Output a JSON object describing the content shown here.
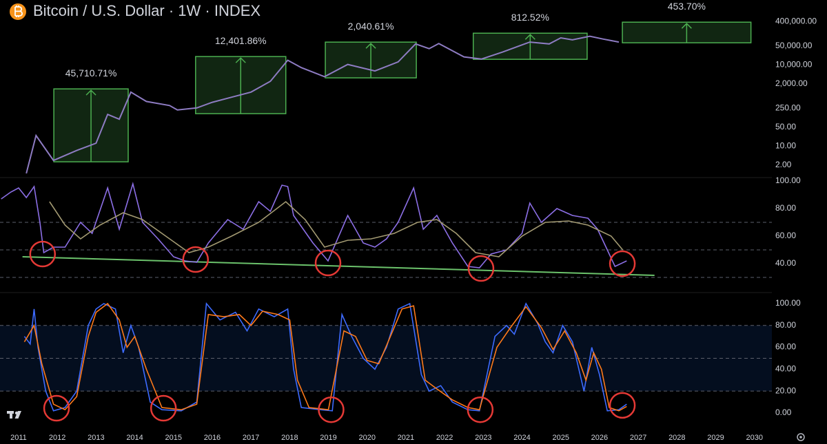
{
  "chart_data": [
    {
      "type": "line",
      "title": "Bitcoin / U.S. Dollar · 1W · INDEX",
      "log": true,
      "color": "#8e7cc3",
      "xlim": [
        2010.52,
        2030.45
      ],
      "ylim": [
        0.7,
        2500000
      ],
      "yticks": [
        {
          "value": 2,
          "label": "2.00"
        },
        {
          "value": 10,
          "label": "10.00"
        },
        {
          "value": 50,
          "label": "50.00"
        },
        {
          "value": 250,
          "label": "250.00"
        },
        {
          "value": 2000,
          "label": "2,000.00"
        },
        {
          "value": 10000,
          "label": "10,000.00"
        },
        {
          "value": 50000,
          "label": "50,000.00"
        },
        {
          "value": 400000,
          "label": "400,000.00"
        }
      ],
      "x": [
        2011.2,
        2011.45,
        2011.9,
        2012.5,
        2013.0,
        2013.3,
        2013.6,
        2013.9,
        2014.3,
        2014.9,
        2015.1,
        2015.6,
        2016.0,
        2016.5,
        2017.0,
        2017.5,
        2017.95,
        2018.3,
        2018.9,
        2019.5,
        2020.2,
        2020.8,
        2021.25,
        2021.6,
        2021.85,
        2022.5,
        2022.95,
        2023.5,
        2024.2,
        2024.7,
        2025.0,
        2025.3,
        2025.75,
        2026.1,
        2026.5
      ],
      "values": [
        1,
        25,
        3,
        7,
        13,
        150,
        100,
        1000,
        450,
        320,
        220,
        260,
        420,
        650,
        1000,
        2500,
        15000,
        8000,
        3700,
        10500,
        6000,
        13000,
        60000,
        40000,
        62000,
        20000,
        16500,
        30000,
        70000,
        60000,
        100000,
        85000,
        115000,
        90000,
        70000
      ],
      "range_color": "#4caf50",
      "ranges": [
        {
          "x": [
            2011.91,
            2013.83
          ],
          "y": [
            2.68,
            1313
          ],
          "label": "45,710.71%"
        },
        {
          "x": [
            2015.57,
            2017.9
          ],
          "y": [
            160,
            20500
          ],
          "label": "12,401.86%"
        },
        {
          "x": [
            2018.92,
            2021.27
          ],
          "y": [
            3350,
            69800
          ],
          "label": "2,040.61%"
        },
        {
          "x": [
            2022.74,
            2025.68
          ],
          "y": [
            16200,
            149000
          ],
          "label": "812.52%"
        },
        {
          "x": [
            2026.59,
            2029.91
          ],
          "y": [
            65900,
            380000
          ],
          "label": "453.70%"
        }
      ]
    },
    {
      "type": "line",
      "xlim": [
        2010.52,
        2030.45
      ],
      "ylim": [
        21.5,
        102.5
      ],
      "yticks": [
        {
          "value": 40,
          "label": "40.00"
        },
        {
          "value": 60,
          "label": "60.00"
        },
        {
          "value": 80,
          "label": "80.00"
        },
        {
          "value": 100,
          "label": "100.00"
        }
      ],
      "reference_lines": [
        70,
        50,
        30
      ],
      "series": [
        {
          "color": "#8c6fe6",
          "x": [
            2010.55,
            2010.8,
            2011.0,
            2011.2,
            2011.4,
            2011.55,
            2011.65,
            2011.9,
            2012.2,
            2012.6,
            2012.9,
            2013.3,
            2013.6,
            2013.95,
            2014.2,
            2014.6,
            2015.0,
            2015.3,
            2015.6,
            2015.9,
            2016.4,
            2016.8,
            2017.2,
            2017.5,
            2017.8,
            2017.95,
            2018.1,
            2018.6,
            2018.99,
            2019.5,
            2019.9,
            2020.2,
            2020.5,
            2020.8,
            2021.2,
            2021.45,
            2021.8,
            2022.2,
            2022.6,
            2022.9,
            2023.2,
            2023.6,
            2024.0,
            2024.2,
            2024.5,
            2024.9,
            2025.3,
            2025.7,
            2025.95,
            2026.2,
            2026.4,
            2026.7
          ],
          "values": [
            87,
            92,
            95,
            88,
            96,
            70,
            48,
            52,
            52,
            70,
            62,
            95,
            65,
            98,
            70,
            58,
            45,
            42,
            41,
            55,
            72,
            65,
            85,
            78,
            97,
            96,
            75,
            55,
            42,
            75,
            55,
            52,
            58,
            70,
            95,
            65,
            75,
            55,
            38,
            37,
            47,
            50,
            62,
            84,
            70,
            80,
            75,
            73,
            65,
            50,
            38,
            42
          ]
        },
        {
          "color": "#a39a72",
          "x": [
            2011.8,
            2012.2,
            2012.6,
            2013.1,
            2013.7,
            2014.2,
            2014.8,
            2015.4,
            2015.9,
            2016.5,
            2017.2,
            2017.9,
            2018.4,
            2018.9,
            2019.5,
            2020.1,
            2020.7,
            2021.3,
            2021.8,
            2022.3,
            2022.8,
            2023.4,
            2024.0,
            2024.6,
            2025.2,
            2025.7,
            2026.3,
            2026.6
          ],
          "values": [
            85,
            68,
            58,
            68,
            77,
            72,
            60,
            48,
            52,
            60,
            70,
            85,
            72,
            52,
            57,
            58,
            62,
            70,
            72,
            62,
            48,
            45,
            60,
            70,
            71,
            68,
            60,
            50
          ]
        }
      ],
      "trendline": {
        "color": "#6cc36c",
        "x": [
          2011.1,
          2027.42
        ],
        "values": [
          45,
          31.5
        ]
      },
      "circles": {
        "color": "#e53935",
        "x": [
          2011.62,
          2015.57,
          2018.99,
          2022.94,
          2026.59
        ],
        "values": [
          47,
          43,
          40.5,
          36.5,
          40
        ]
      }
    },
    {
      "type": "line",
      "xlim": [
        2010.52,
        2030.45
      ],
      "ylim": [
        -12.6,
        106.9
      ],
      "yticks": [
        {
          "value": 0,
          "label": "0.00"
        },
        {
          "value": 20,
          "label": "20.00"
        },
        {
          "value": 40,
          "label": "40.00"
        },
        {
          "value": 60,
          "label": "60.00"
        },
        {
          "value": 80,
          "label": "80.00"
        },
        {
          "value": 100,
          "label": "100.00"
        }
      ],
      "band": [
        20,
        80
      ],
      "reference_lines": [
        80,
        50,
        20
      ],
      "series": [
        {
          "color": "#3d6bff",
          "x": [
            2011.15,
            2011.3,
            2011.4,
            2011.5,
            2011.7,
            2011.9,
            2012.2,
            2012.5,
            2012.8,
            2013.0,
            2013.2,
            2013.5,
            2013.7,
            2013.9,
            2014.1,
            2014.4,
            2014.7,
            2015.2,
            2015.6,
            2015.85,
            2016.2,
            2016.6,
            2016.9,
            2017.2,
            2017.6,
            2017.95,
            2018.1,
            2018.3,
            2018.8,
            2019.1,
            2019.35,
            2019.6,
            2019.9,
            2020.2,
            2020.5,
            2020.8,
            2021.1,
            2021.4,
            2021.6,
            2021.9,
            2022.2,
            2022.6,
            2022.9,
            2023.3,
            2023.6,
            2023.8,
            2024.1,
            2024.4,
            2024.6,
            2024.8,
            2025.05,
            2025.3,
            2025.6,
            2025.8,
            2026.0,
            2026.2,
            2026.5,
            2026.7
          ],
          "values": [
            70,
            63,
            95,
            60,
            20,
            2,
            5,
            20,
            80,
            95,
            100,
            95,
            55,
            80,
            60,
            10,
            3,
            2,
            10,
            100,
            85,
            92,
            75,
            95,
            88,
            95,
            40,
            5,
            3,
            2,
            90,
            70,
            50,
            40,
            60,
            95,
            100,
            35,
            20,
            25,
            10,
            3,
            2,
            70,
            80,
            72,
            100,
            82,
            65,
            55,
            80,
            65,
            20,
            60,
            35,
            2,
            3,
            8
          ]
        },
        {
          "color": "#ff7a1a",
          "x": [
            2011.15,
            2011.4,
            2011.6,
            2011.9,
            2012.2,
            2012.5,
            2012.8,
            2013.0,
            2013.3,
            2013.6,
            2013.8,
            2014.0,
            2014.3,
            2014.7,
            2015.2,
            2015.6,
            2015.9,
            2016.3,
            2016.7,
            2017.0,
            2017.3,
            2017.7,
            2018.0,
            2018.2,
            2018.5,
            2019.0,
            2019.4,
            2019.7,
            2020.0,
            2020.3,
            2020.6,
            2020.9,
            2021.2,
            2021.5,
            2021.8,
            2022.2,
            2022.6,
            2022.9,
            2023.35,
            2023.7,
            2024.1,
            2024.5,
            2024.8,
            2025.1,
            2025.4,
            2025.65,
            2025.85,
            2026.05,
            2026.25,
            2026.5,
            2026.7
          ],
          "values": [
            65,
            80,
            45,
            8,
            3,
            15,
            70,
            92,
            100,
            85,
            60,
            70,
            40,
            5,
            3,
            8,
            90,
            88,
            90,
            80,
            93,
            90,
            85,
            30,
            5,
            3,
            75,
            70,
            48,
            45,
            70,
            95,
            98,
            30,
            22,
            12,
            5,
            3,
            60,
            78,
            97,
            78,
            58,
            75,
            55,
            30,
            55,
            40,
            5,
            2,
            6
          ]
        }
      ],
      "circles": {
        "color": "#e53935",
        "x": [
          2011.98,
          2014.74,
          2019.07,
          2022.92,
          2026.59
        ],
        "values": [
          4.4,
          4.4,
          3,
          3,
          7
        ]
      },
      "xticks": [
        2011,
        2012,
        2013,
        2014,
        2015,
        2016,
        2017,
        2018,
        2019,
        2020,
        2021,
        2022,
        2023,
        2024,
        2025,
        2026,
        2027,
        2028,
        2029,
        2030
      ]
    }
  ]
}
